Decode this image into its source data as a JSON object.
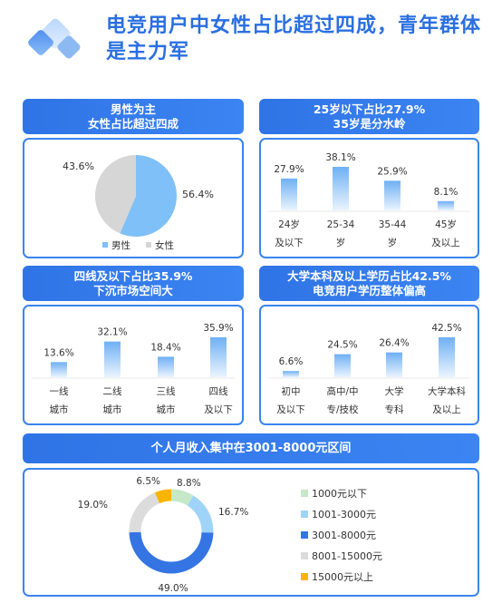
{
  "page": {
    "title": "电竞用户中女性占比超过四成，青年群体是主力军"
  },
  "colors": {
    "primary": "#2f74e6",
    "male": "#7ec0f7",
    "female": "#d6d6d6",
    "bar_top": "#6fb0f4",
    "bar_bottom": "#eaf4fe"
  },
  "panels": {
    "gender": {
      "header_line1": "男性为主",
      "header_line2": "女性占比超过四成"
    },
    "age": {
      "header_line1": "25岁以下占比27.9%",
      "header_line2": "35岁是分水岭"
    },
    "city": {
      "header_line1": "四线及以下占比35.9%",
      "header_line2": "下沉市场空间大"
    },
    "edu": {
      "header_line1": "大学本科及以上学历占比42.5%",
      "header_line2": "电竞用户学历整体偏高"
    },
    "income": {
      "header": "个人月收入集中在3001-8000元区间"
    }
  },
  "chart_data": [
    {
      "type": "pie",
      "labels": [
        "男性",
        "女性"
      ],
      "values": [
        56.4,
        43.6
      ],
      "value_labels": [
        "56.4%",
        "43.6%"
      ],
      "colors": [
        "#7ec0f7",
        "#d6d6d6"
      ],
      "legend_position": "bottom"
    },
    {
      "type": "bar",
      "categories": [
        [
          "24岁",
          "及以下"
        ],
        [
          "25-34",
          "岁"
        ],
        [
          "35-44",
          "岁"
        ],
        [
          "45岁",
          "及以上"
        ]
      ],
      "values": [
        27.9,
        38.1,
        25.9,
        8.1
      ],
      "value_labels": [
        "27.9%",
        "38.1%",
        "25.9%",
        "8.1%"
      ]
    },
    {
      "type": "bar",
      "categories": [
        [
          "一线",
          "城市"
        ],
        [
          "二线",
          "城市"
        ],
        [
          "三线",
          "城市"
        ],
        [
          "四线",
          "及以下"
        ]
      ],
      "values": [
        13.6,
        32.1,
        18.4,
        35.9
      ],
      "value_labels": [
        "13.6%",
        "32.1%",
        "18.4%",
        "35.9%"
      ]
    },
    {
      "type": "bar",
      "categories": [
        [
          "初中",
          "及以下"
        ],
        [
          "高中/中",
          "专/技校"
        ],
        [
          "大学",
          "专科"
        ],
        [
          "大学本科",
          "及以上"
        ]
      ],
      "values": [
        6.6,
        24.5,
        26.4,
        42.5
      ],
      "value_labels": [
        "6.6%",
        "24.5%",
        "26.4%",
        "42.5%"
      ]
    },
    {
      "type": "pie",
      "subtype": "donut",
      "labels": [
        "1000元以下",
        "1001-3000元",
        "3001-8000元",
        "8001-15000元",
        "15000元以上"
      ],
      "values": [
        8.8,
        16.7,
        49.0,
        19.0,
        6.5
      ],
      "value_labels": [
        "8.8%",
        "16.7%",
        "49.0%",
        "19.0%",
        "6.5%"
      ],
      "colors": [
        "#c5e8c9",
        "#9fd4f8",
        "#3574e3",
        "#dcdcdc",
        "#f7b500"
      ],
      "legend_position": "right"
    }
  ]
}
